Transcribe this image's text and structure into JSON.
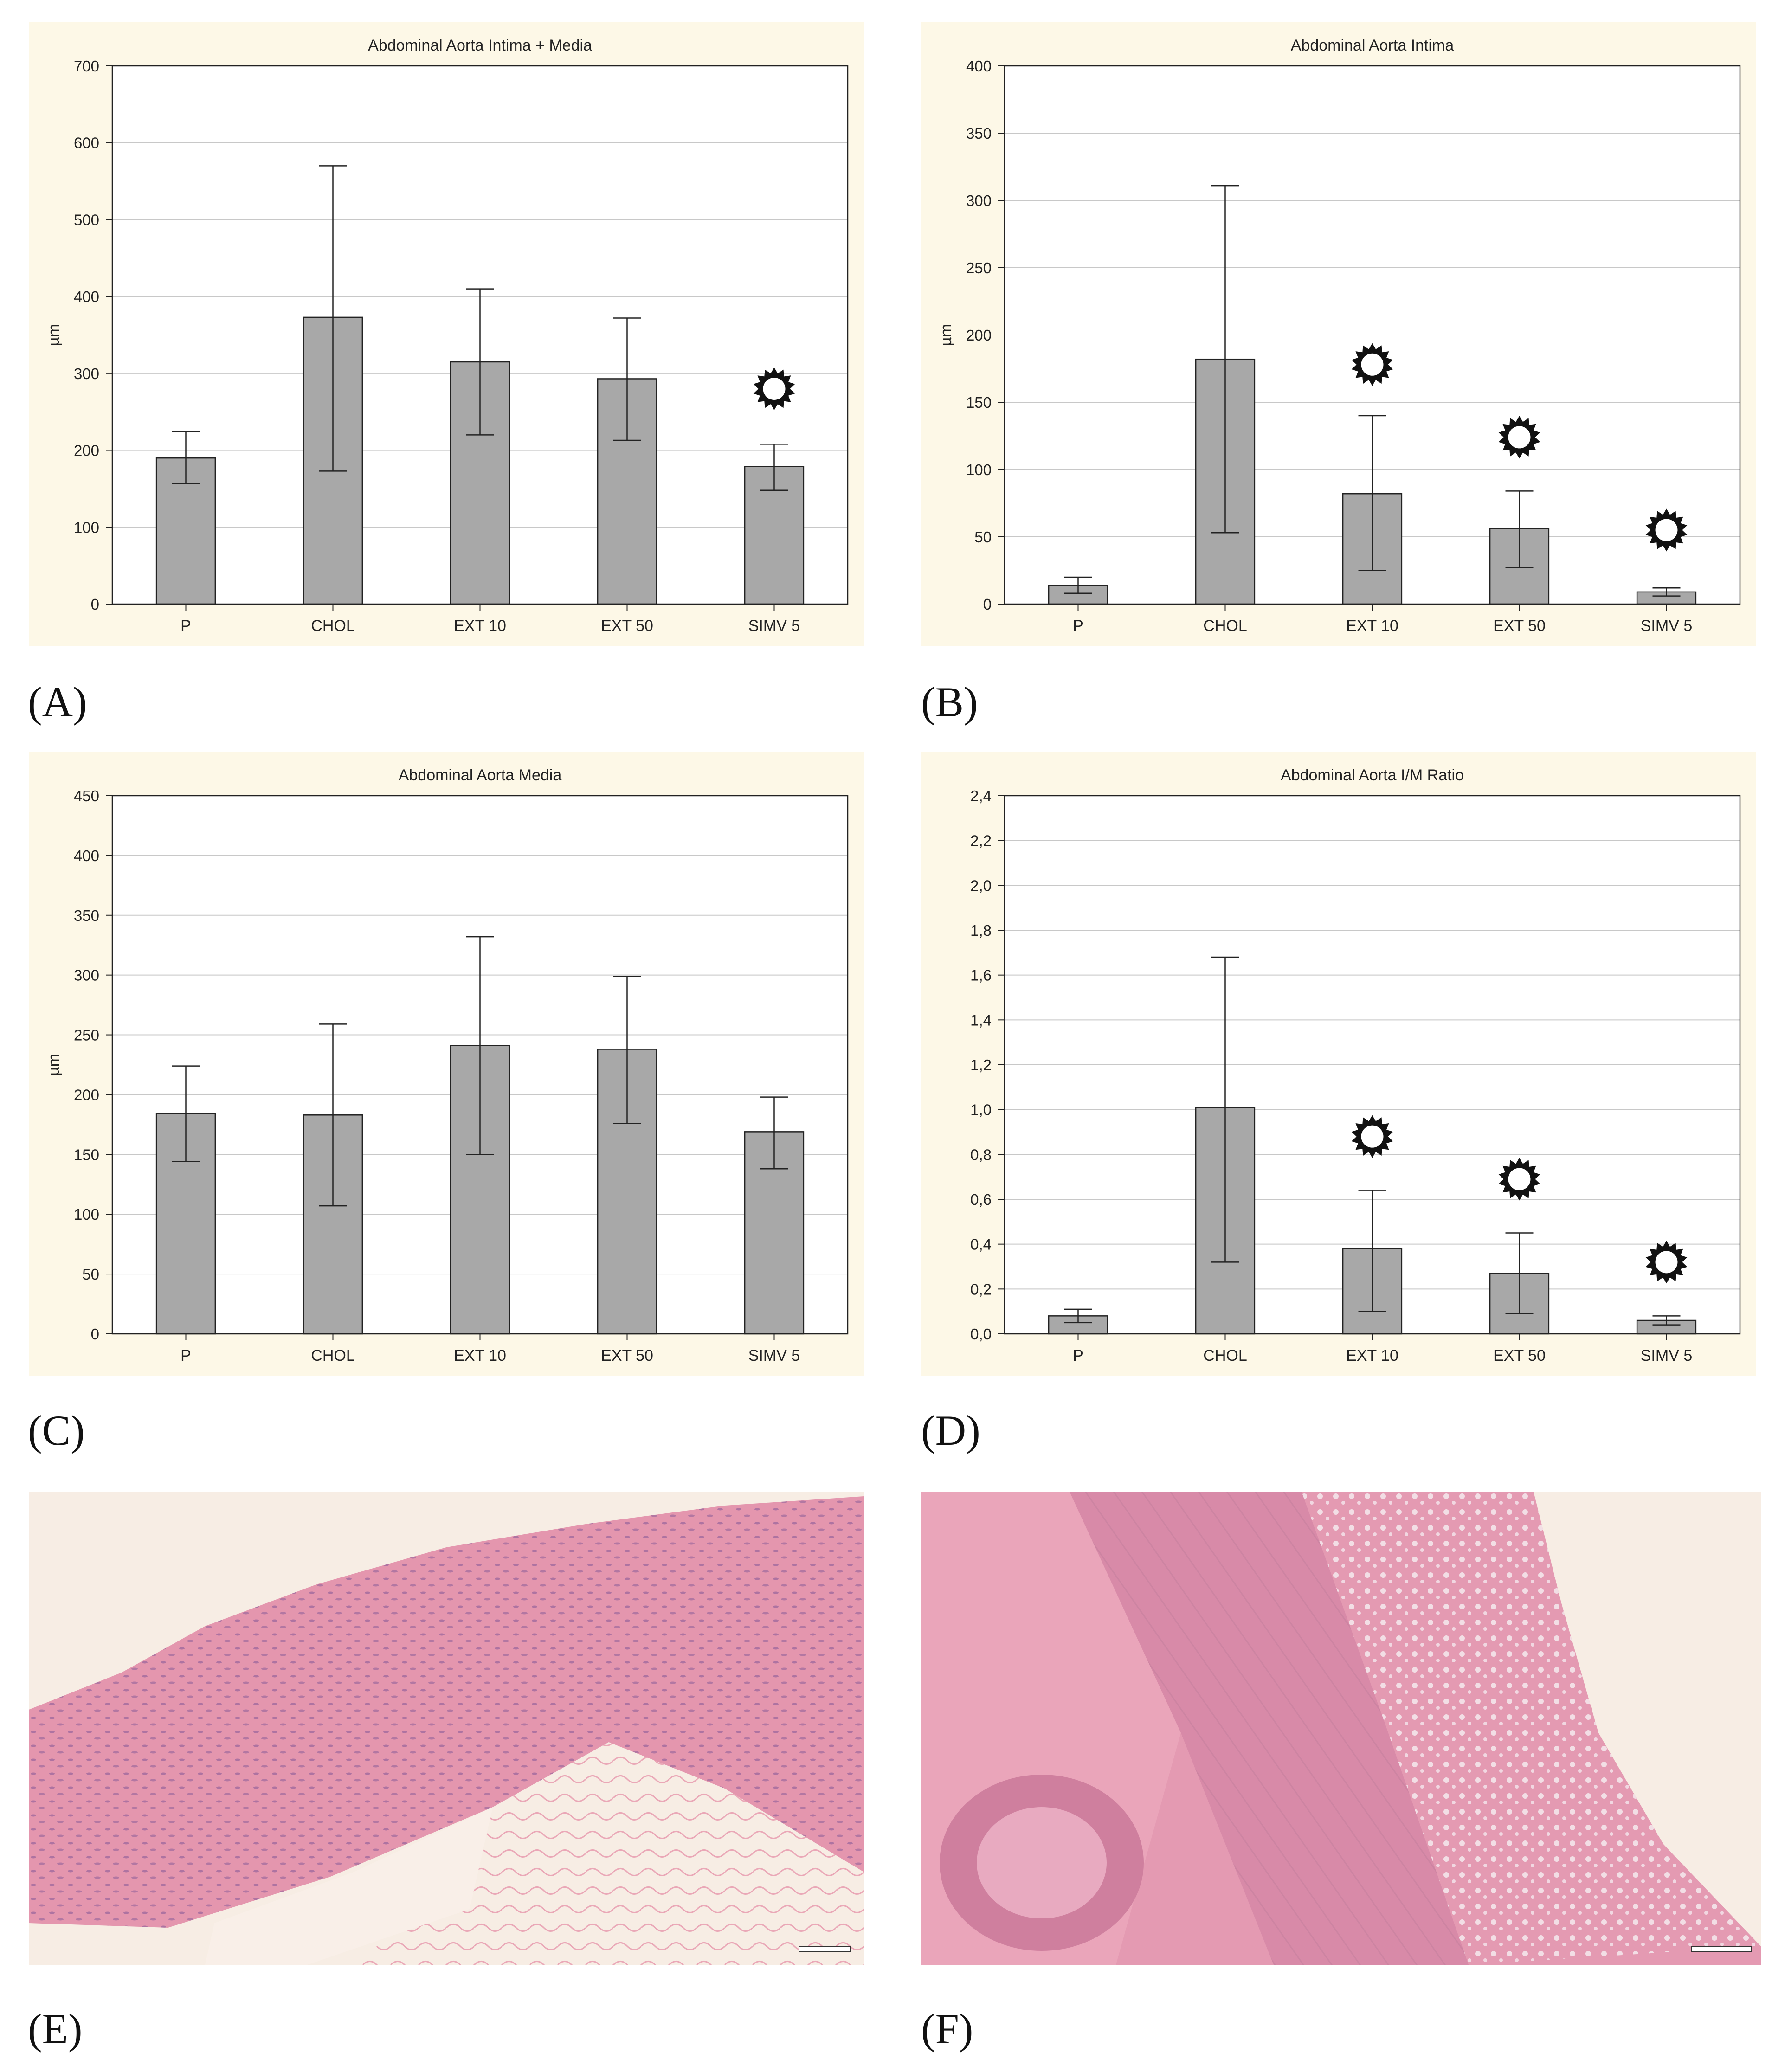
{
  "colors": {
    "panel_bg": "#fdf8e7",
    "bar": "#a8a8a8",
    "tissue": "#e58aa6"
  },
  "labels": {
    "A": "(A)",
    "B": "(B)",
    "C": "(C)",
    "D": "(D)",
    "E": "(E)",
    "F": "(F)"
  },
  "chart_data": [
    {
      "id": "A",
      "type": "bar",
      "title": "Abdominal Aorta Intima + Media",
      "ylabel": "µm",
      "xlabel": "",
      "categories": [
        "P",
        "CHOL",
        "EXT 10",
        "EXT 50",
        "SIMV 5"
      ],
      "values": [
        190,
        373,
        315,
        293,
        179
      ],
      "err_low": [
        157,
        173,
        220,
        213,
        148
      ],
      "err_high": [
        224,
        570,
        410,
        372,
        208
      ],
      "ylim": [
        0,
        700
      ],
      "yticks": [
        0,
        100,
        200,
        300,
        400,
        500,
        600,
        700
      ],
      "ytick_labels": [
        "0",
        "100",
        "200",
        "300",
        "400",
        "500",
        "600",
        "700"
      ],
      "markers": [
        {
          "category": "SIMV 5",
          "y": 280
        }
      ],
      "grid": true
    },
    {
      "id": "B",
      "type": "bar",
      "title": "Abdominal Aorta Intima",
      "ylabel": "µm",
      "xlabel": "",
      "categories": [
        "P",
        "CHOL",
        "EXT 10",
        "EXT 50",
        "SIMV 5"
      ],
      "values": [
        14,
        182,
        82,
        56,
        9
      ],
      "err_low": [
        8,
        53,
        25,
        27,
        6
      ],
      "err_high": [
        20,
        311,
        140,
        84,
        12
      ],
      "ylim": [
        0,
        400
      ],
      "yticks": [
        0,
        50,
        100,
        150,
        200,
        250,
        300,
        350,
        400
      ],
      "ytick_labels": [
        "0",
        "50",
        "100",
        "150",
        "200",
        "250",
        "300",
        "350",
        "400"
      ],
      "markers": [
        {
          "category": "EXT 10",
          "y": 178
        },
        {
          "category": "EXT 50",
          "y": 124
        },
        {
          "category": "SIMV 5",
          "y": 55
        }
      ],
      "grid": true
    },
    {
      "id": "C",
      "type": "bar",
      "title": "Abdominal Aorta Media",
      "ylabel": "µm",
      "xlabel": "",
      "categories": [
        "P",
        "CHOL",
        "EXT 10",
        "EXT 50",
        "SIMV 5"
      ],
      "values": [
        184,
        183,
        241,
        238,
        169
      ],
      "err_low": [
        144,
        107,
        150,
        176,
        138
      ],
      "err_high": [
        224,
        259,
        332,
        299,
        198
      ],
      "ylim": [
        0,
        450
      ],
      "yticks": [
        0,
        50,
        100,
        150,
        200,
        250,
        300,
        350,
        400,
        450
      ],
      "ytick_labels": [
        "0",
        "50",
        "100",
        "150",
        "200",
        "250",
        "300",
        "350",
        "400",
        "450"
      ],
      "markers": [],
      "grid": true
    },
    {
      "id": "D",
      "type": "bar",
      "title": "Abdominal Aorta I/M Ratio",
      "ylabel": "",
      "xlabel": "",
      "categories": [
        "P",
        "CHOL",
        "EXT 10",
        "EXT 50",
        "SIMV 5"
      ],
      "values": [
        0.08,
        1.01,
        0.38,
        0.27,
        0.06
      ],
      "err_low": [
        0.05,
        0.32,
        0.1,
        0.09,
        0.04
      ],
      "err_high": [
        0.11,
        1.68,
        0.64,
        0.45,
        0.08
      ],
      "ylim": [
        0,
        2.4
      ],
      "yticks": [
        0,
        0.2,
        0.4,
        0.6,
        0.8,
        1.0,
        1.2,
        1.4,
        1.6,
        1.8,
        2.0,
        2.2,
        2.4
      ],
      "ytick_labels": [
        "0,0",
        "0,2",
        "0,4",
        "0,6",
        "0,8",
        "1,0",
        "1,2",
        "1,4",
        "1,6",
        "1,8",
        "2,0",
        "2,2",
        "2,4"
      ],
      "markers": [
        {
          "category": "EXT 10",
          "y": 0.88
        },
        {
          "category": "EXT 50",
          "y": 0.69
        },
        {
          "category": "SIMV 5",
          "y": 0.32
        }
      ],
      "grid": true
    }
  ]
}
